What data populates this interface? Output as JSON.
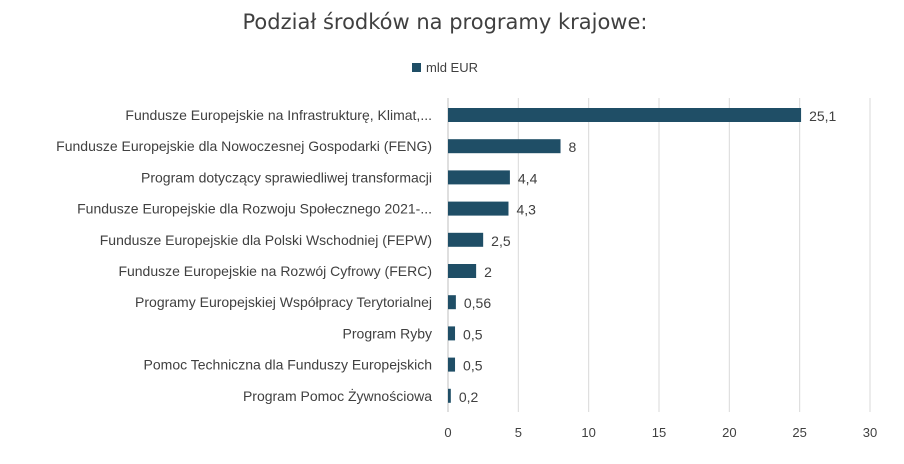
{
  "chart_data": {
    "type": "bar",
    "orientation": "horizontal",
    "title": "Podział środków na programy krajowe:",
    "legend": {
      "position": "top",
      "entries": [
        "mld EUR"
      ]
    },
    "categories": [
      "Fundusze Europejskie na Infrastrukturę, Klimat,...",
      "Fundusze Europejskie dla Nowoczesnej Gospodarki (FENG)",
      "Program dotyczący sprawiedliwej transformacji",
      "Fundusze Europejskie dla Rozwoju Społecznego 2021-...",
      "Fundusze Europejskie dla Polski Wschodniej (FEPW)",
      "Fundusze Europejskie na Rozwój Cyfrowy (FERC)",
      "Programy Europejskiej Współpracy Terytorialnej",
      "Program Ryby",
      "Pomoc Techniczna dla Funduszy Europejskich",
      "Program Pomoc Żywnościowa"
    ],
    "series": [
      {
        "name": "mld EUR",
        "values": [
          25.1,
          8,
          4.4,
          4.3,
          2.5,
          2,
          0.56,
          0.5,
          0.5,
          0.2
        ],
        "value_labels": [
          "25,1",
          "8",
          "4,4",
          "4,3",
          "2,5",
          "2",
          "0,56",
          "0,5",
          "0,5",
          "0,2"
        ]
      }
    ],
    "xlim": [
      0,
      30
    ],
    "xticks": [
      0,
      5,
      10,
      15,
      20,
      25,
      30
    ],
    "grid": "vertical",
    "bar_color": "#1f4e66",
    "xlabel": "",
    "ylabel": ""
  }
}
